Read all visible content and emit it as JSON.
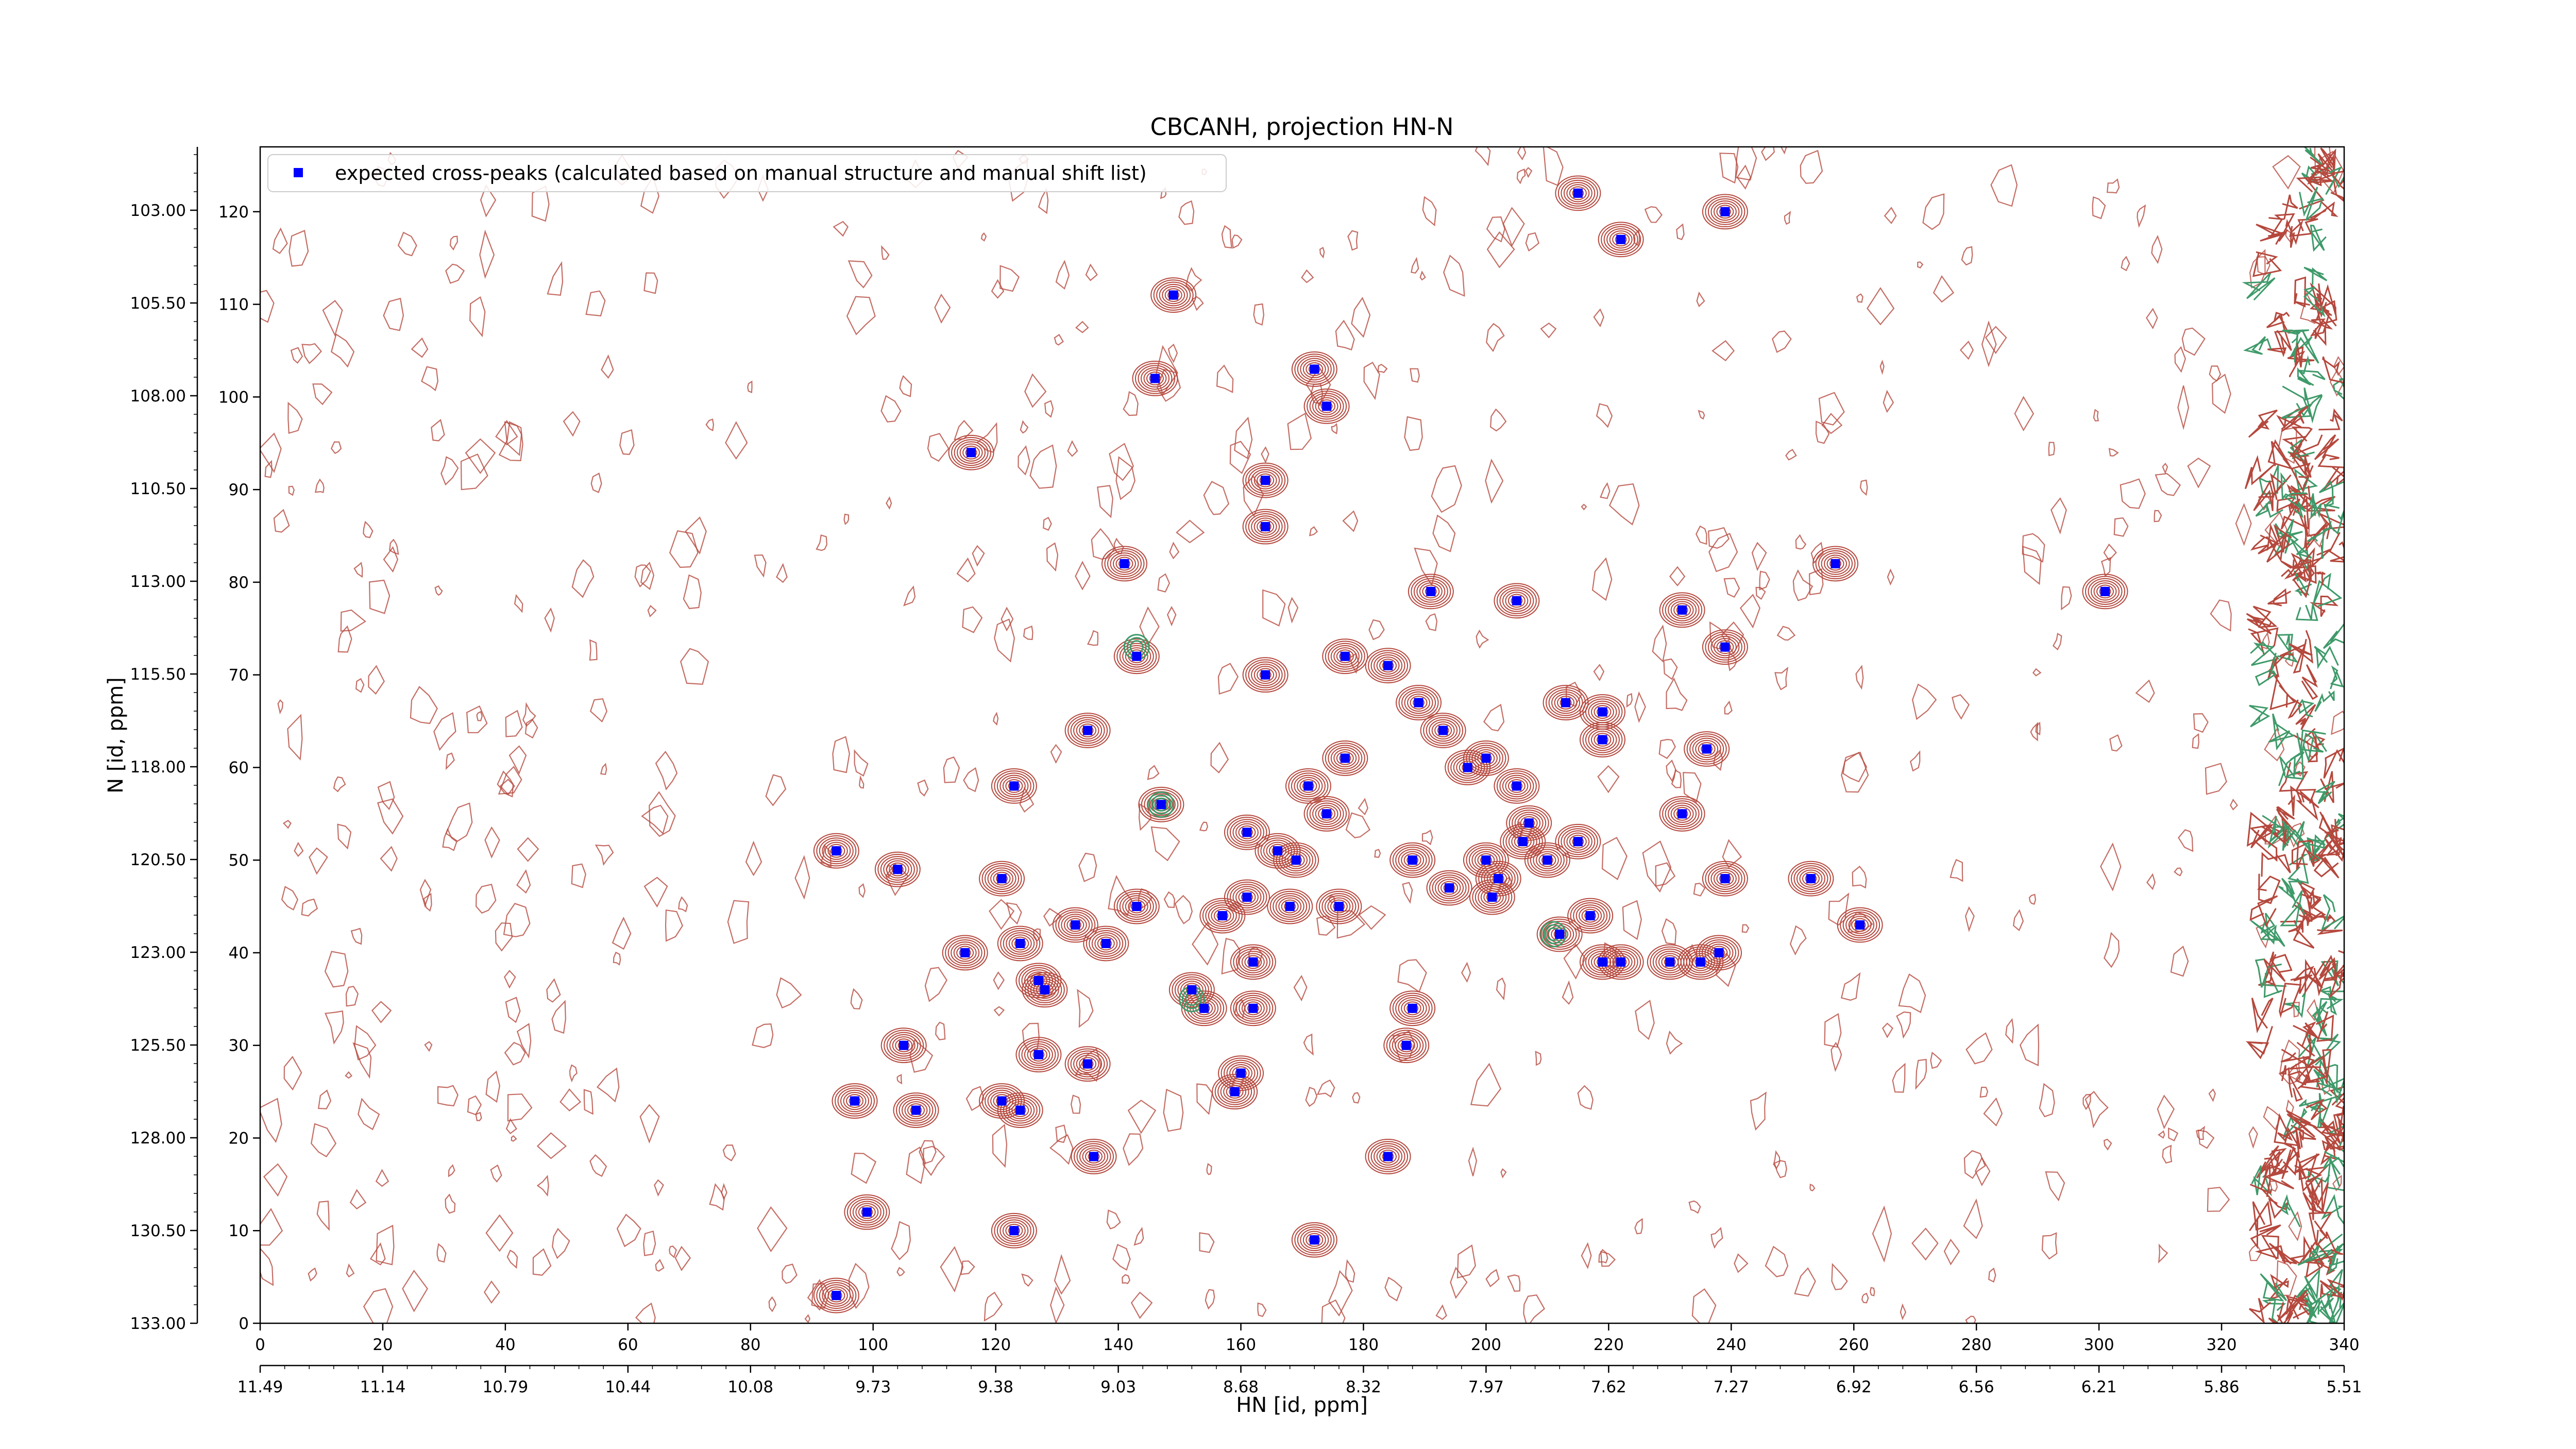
{
  "chart_data": {
    "type": "scatter",
    "title": "CBCANH, projection HN-N",
    "xlabel": "HN [id, ppm]",
    "ylabel": "N [id, ppm]",
    "x_index_ticks": [
      "0",
      "20",
      "40",
      "60",
      "80",
      "100",
      "120",
      "140",
      "160",
      "180",
      "200",
      "220",
      "240",
      "260",
      "280",
      "300",
      "320",
      "340"
    ],
    "x_ppm_ticks": [
      "11.49",
      "11.14",
      "10.79",
      "10.44",
      "10.08",
      "9.73",
      "9.38",
      "9.03",
      "8.68",
      "8.32",
      "7.97",
      "7.62",
      "7.27",
      "6.92",
      "6.56",
      "6.21",
      "5.86",
      "5.51"
    ],
    "y_index_ticks": [
      "0",
      "10",
      "20",
      "30",
      "40",
      "50",
      "60",
      "70",
      "80",
      "90",
      "100",
      "110",
      "120"
    ],
    "y_ppm_ticks": [
      "133.00",
      "130.50",
      "128.00",
      "125.50",
      "123.00",
      "120.50",
      "118.00",
      "115.50",
      "113.00",
      "110.50",
      "108.00",
      "105.50",
      "103.00"
    ],
    "xlim": [
      0,
      340
    ],
    "ylim": [
      0,
      127
    ],
    "grid": false,
    "legend_position": "top-left",
    "contour_color": "#b5483d",
    "contour_color_negative": "#3f9a6a",
    "series": [
      {
        "name": "expected cross-peaks (calculated based on manual structure and manual shift list)",
        "color": "#0000ff",
        "marker": "square",
        "points": [
          [
            215,
            122
          ],
          [
            239,
            120
          ],
          [
            222,
            117
          ],
          [
            149,
            111
          ],
          [
            172,
            103
          ],
          [
            146,
            102
          ],
          [
            174,
            99
          ],
          [
            116,
            94
          ],
          [
            164,
            91
          ],
          [
            164,
            86
          ],
          [
            141,
            82
          ],
          [
            191,
            79
          ],
          [
            205,
            78
          ],
          [
            232,
            77
          ],
          [
            239,
            73
          ],
          [
            257,
            82
          ],
          [
            301,
            79
          ],
          [
            143,
            72
          ],
          [
            177,
            72
          ],
          [
            184,
            71
          ],
          [
            164,
            70
          ],
          [
            213,
            67
          ],
          [
            189,
            67
          ],
          [
            219,
            66
          ],
          [
            193,
            64
          ],
          [
            135,
            64
          ],
          [
            219,
            63
          ],
          [
            236,
            62
          ],
          [
            200,
            61
          ],
          [
            197,
            60
          ],
          [
            177,
            61
          ],
          [
            171,
            58
          ],
          [
            147,
            56
          ],
          [
            174,
            55
          ],
          [
            123,
            58
          ],
          [
            205,
            58
          ],
          [
            232,
            55
          ],
          [
            207,
            54
          ],
          [
            215,
            52
          ],
          [
            206,
            52
          ],
          [
            161,
            53
          ],
          [
            166,
            51
          ],
          [
            169,
            50
          ],
          [
            188,
            50
          ],
          [
            200,
            50
          ],
          [
            210,
            50
          ],
          [
            94,
            51
          ],
          [
            104,
            49
          ],
          [
            121,
            48
          ],
          [
            202,
            48
          ],
          [
            239,
            48
          ],
          [
            253,
            48
          ],
          [
            194,
            47
          ],
          [
            168,
            45
          ],
          [
            176,
            45
          ],
          [
            201,
            46
          ],
          [
            161,
            46
          ],
          [
            143,
            45
          ],
          [
            157,
            44
          ],
          [
            217,
            44
          ],
          [
            133,
            43
          ],
          [
            261,
            43
          ],
          [
            124,
            41
          ],
          [
            138,
            41
          ],
          [
            212,
            42
          ],
          [
            115,
            40
          ],
          [
            162,
            39
          ],
          [
            219,
            39
          ],
          [
            222,
            39
          ],
          [
            230,
            39
          ],
          [
            235,
            39
          ],
          [
            238,
            40
          ],
          [
            128,
            36
          ],
          [
            127,
            37
          ],
          [
            152,
            36
          ],
          [
            154,
            34
          ],
          [
            162,
            34
          ],
          [
            188,
            34
          ],
          [
            187,
            30
          ],
          [
            105,
            30
          ],
          [
            127,
            29
          ],
          [
            135,
            28
          ],
          [
            160,
            27
          ],
          [
            159,
            25
          ],
          [
            97,
            24
          ],
          [
            107,
            23
          ],
          [
            121,
            24
          ],
          [
            124,
            23
          ],
          [
            136,
            18
          ],
          [
            184,
            18
          ],
          [
            99,
            12
          ],
          [
            123,
            10
          ],
          [
            172,
            9
          ],
          [
            94,
            3
          ]
        ]
      }
    ],
    "negative_peaks": [
      [
        143,
        73
      ],
      [
        147,
        56
      ],
      [
        152,
        35
      ],
      [
        211,
        42
      ]
    ],
    "noise_columns_from_x": 326
  }
}
